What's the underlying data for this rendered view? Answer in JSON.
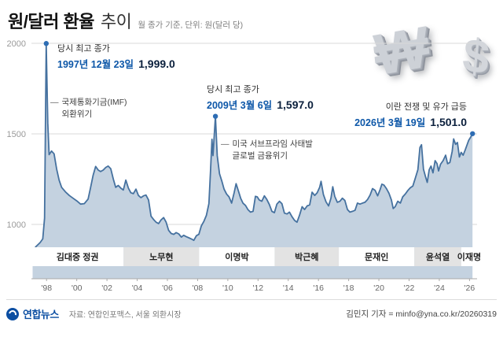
{
  "header": {
    "title_bold": "원/달러 환율",
    "title_light": "추이",
    "subtitle": "월 종가 기준, 단위: 원(달러 당)"
  },
  "decor": {
    "won_symbol": "₩",
    "dollar_symbol": "$"
  },
  "annotations": {
    "peak1997": {
      "label": "당시 최고 종가",
      "date": "1997년 12월 23일",
      "value": "1,999.0"
    },
    "imf": {
      "dash": "—",
      "line1": "국제통화기금(IMF)",
      "line2": "외환위기"
    },
    "peak2009": {
      "label": "당시 최고 종가",
      "date": "2009년 3월 6일",
      "value": "1,597.0"
    },
    "subprime": {
      "dash": "—",
      "line1": "미국 서브프라임 사태발",
      "line2": "글로벌 금융위기"
    },
    "peak2026": {
      "label": "이란 전쟁 및 유가 급등",
      "date": "2026년 3월 19일",
      "value": "1,501.0"
    }
  },
  "footer": {
    "logo_text": "연합뉴스",
    "source": "자료: 연합인포맥스, 서울 외환시장",
    "credit": "김민지 기자 = minfo@yna.co.kr/20260319"
  },
  "chart_data": {
    "type": "area",
    "title": "원/달러 환율 추이",
    "unit_note": "월 종가 기준, 단위: 원(달러 당)",
    "x_range": [
      1997.0,
      2026.5
    ],
    "y_axis": {
      "ticks": [
        2000,
        1500,
        1000
      ],
      "min": 700,
      "max": 2000
    },
    "x_ticks": [
      {
        "year": 1998,
        "label": "'98"
      },
      {
        "year": 2000,
        "label": "'00"
      },
      {
        "year": 2002,
        "label": "'02"
      },
      {
        "year": 2004,
        "label": "'04"
      },
      {
        "year": 2006,
        "label": "'06"
      },
      {
        "year": 2008,
        "label": "'08"
      },
      {
        "year": 2010,
        "label": "'10"
      },
      {
        "year": 2012,
        "label": "'12"
      },
      {
        "year": 2014,
        "label": "'14"
      },
      {
        "year": 2016,
        "label": "'16"
      },
      {
        "year": 2018,
        "label": "'18"
      },
      {
        "year": 2020,
        "label": "'20"
      },
      {
        "year": 2022,
        "label": "'22"
      },
      {
        "year": 2024,
        "label": "'24"
      },
      {
        "year": 2026,
        "label": "'26"
      }
    ],
    "admin_bands": [
      {
        "label": "김대중 정권",
        "start": 1997.0,
        "end": 2003.1,
        "shade": false
      },
      {
        "label": "노무현",
        "start": 2003.1,
        "end": 2008.1,
        "shade": true
      },
      {
        "label": "이명박",
        "start": 2008.1,
        "end": 2013.1,
        "shade": false
      },
      {
        "label": "박근혜",
        "start": 2013.1,
        "end": 2017.35,
        "shade": true
      },
      {
        "label": "문재인",
        "start": 2017.35,
        "end": 2022.35,
        "shade": false
      },
      {
        "label": "윤석열",
        "start": 2022.35,
        "end": 2025.45,
        "shade": true
      },
      {
        "label": "이재명",
        "start": 2025.45,
        "end": 2026.5,
        "shade": false
      }
    ],
    "markers": [
      {
        "year": 1997.98,
        "value": 1999.0
      },
      {
        "year": 2009.18,
        "value": 1597.0
      },
      {
        "year": 2026.2,
        "value": 1501.0
      }
    ],
    "points": [
      [
        1997.08,
        855
      ],
      [
        1997.33,
        880
      ],
      [
        1997.58,
        900
      ],
      [
        1997.75,
        920
      ],
      [
        1997.87,
        1035
      ],
      [
        1997.98,
        1999
      ],
      [
        1998.08,
        1560
      ],
      [
        1998.17,
        1385
      ],
      [
        1998.33,
        1405
      ],
      [
        1998.5,
        1390
      ],
      [
        1998.67,
        1305
      ],
      [
        1998.83,
        1245
      ],
      [
        1999.0,
        1205
      ],
      [
        1999.25,
        1180
      ],
      [
        1999.5,
        1160
      ],
      [
        1999.75,
        1145
      ],
      [
        2000.0,
        1130
      ],
      [
        2000.25,
        1112
      ],
      [
        2000.5,
        1115
      ],
      [
        2000.75,
        1140
      ],
      [
        2000.92,
        1205
      ],
      [
        2001.08,
        1270
      ],
      [
        2001.25,
        1320
      ],
      [
        2001.42,
        1300
      ],
      [
        2001.58,
        1292
      ],
      [
        2001.75,
        1300
      ],
      [
        2001.92,
        1315
      ],
      [
        2002.08,
        1322
      ],
      [
        2002.25,
        1308
      ],
      [
        2002.42,
        1250
      ],
      [
        2002.58,
        1205
      ],
      [
        2002.75,
        1215
      ],
      [
        2002.92,
        1200
      ],
      [
        2003.08,
        1190
      ],
      [
        2003.25,
        1245
      ],
      [
        2003.42,
        1200
      ],
      [
        2003.58,
        1175
      ],
      [
        2003.75,
        1170
      ],
      [
        2003.92,
        1195
      ],
      [
        2004.08,
        1160
      ],
      [
        2004.25,
        1148
      ],
      [
        2004.42,
        1158
      ],
      [
        2004.58,
        1162
      ],
      [
        2004.75,
        1135
      ],
      [
        2004.92,
        1045
      ],
      [
        2005.08,
        1028
      ],
      [
        2005.25,
        1012
      ],
      [
        2005.42,
        1005
      ],
      [
        2005.58,
        1025
      ],
      [
        2005.75,
        1038
      ],
      [
        2005.92,
        1012
      ],
      [
        2006.08,
        968
      ],
      [
        2006.25,
        950
      ],
      [
        2006.42,
        945
      ],
      [
        2006.58,
        955
      ],
      [
        2006.75,
        948
      ],
      [
        2006.92,
        930
      ],
      [
        2007.08,
        940
      ],
      [
        2007.25,
        932
      ],
      [
        2007.42,
        926
      ],
      [
        2007.58,
        920
      ],
      [
        2007.75,
        912
      ],
      [
        2007.92,
        938
      ],
      [
        2008.08,
        945
      ],
      [
        2008.25,
        992
      ],
      [
        2008.42,
        1018
      ],
      [
        2008.58,
        1050
      ],
      [
        2008.75,
        1115
      ],
      [
        2008.85,
        1290
      ],
      [
        2008.95,
        1470
      ],
      [
        2009.02,
        1380
      ],
      [
        2009.18,
        1597
      ],
      [
        2009.3,
        1380
      ],
      [
        2009.45,
        1280
      ],
      [
        2009.6,
        1240
      ],
      [
        2009.75,
        1195
      ],
      [
        2009.92,
        1168
      ],
      [
        2010.08,
        1152
      ],
      [
        2010.25,
        1118
      ],
      [
        2010.42,
        1175
      ],
      [
        2010.55,
        1225
      ],
      [
        2010.7,
        1185
      ],
      [
        2010.85,
        1145
      ],
      [
        2011.0,
        1118
      ],
      [
        2011.17,
        1105
      ],
      [
        2011.33,
        1082
      ],
      [
        2011.5,
        1068
      ],
      [
        2011.67,
        1072
      ],
      [
        2011.83,
        1155
      ],
      [
        2011.95,
        1152
      ],
      [
        2012.08,
        1135
      ],
      [
        2012.25,
        1128
      ],
      [
        2012.42,
        1158
      ],
      [
        2012.58,
        1138
      ],
      [
        2012.75,
        1110
      ],
      [
        2012.92,
        1072
      ],
      [
        2013.08,
        1065
      ],
      [
        2013.25,
        1112
      ],
      [
        2013.42,
        1128
      ],
      [
        2013.58,
        1115
      ],
      [
        2013.75,
        1062
      ],
      [
        2013.92,
        1058
      ],
      [
        2014.08,
        1068
      ],
      [
        2014.25,
        1042
      ],
      [
        2014.42,
        1022
      ],
      [
        2014.58,
        1012
      ],
      [
        2014.75,
        1052
      ],
      [
        2014.92,
        1098
      ],
      [
        2015.08,
        1082
      ],
      [
        2015.25,
        1102
      ],
      [
        2015.42,
        1108
      ],
      [
        2015.58,
        1178
      ],
      [
        2015.75,
        1160
      ],
      [
        2015.92,
        1175
      ],
      [
        2016.08,
        1205
      ],
      [
        2016.17,
        1238
      ],
      [
        2016.33,
        1165
      ],
      [
        2016.5,
        1125
      ],
      [
        2016.67,
        1102
      ],
      [
        2016.83,
        1145
      ],
      [
        2016.95,
        1208
      ],
      [
        2017.08,
        1155
      ],
      [
        2017.25,
        1122
      ],
      [
        2017.42,
        1128
      ],
      [
        2017.58,
        1145
      ],
      [
        2017.75,
        1132
      ],
      [
        2017.92,
        1082
      ],
      [
        2018.08,
        1068
      ],
      [
        2018.25,
        1072
      ],
      [
        2018.42,
        1078
      ],
      [
        2018.58,
        1118
      ],
      [
        2018.75,
        1112
      ],
      [
        2018.92,
        1118
      ],
      [
        2019.08,
        1122
      ],
      [
        2019.25,
        1138
      ],
      [
        2019.42,
        1162
      ],
      [
        2019.58,
        1198
      ],
      [
        2019.75,
        1188
      ],
      [
        2019.92,
        1158
      ],
      [
        2020.08,
        1192
      ],
      [
        2020.2,
        1222
      ],
      [
        2020.33,
        1218
      ],
      [
        2020.5,
        1198
      ],
      [
        2020.67,
        1172
      ],
      [
        2020.83,
        1135
      ],
      [
        2020.95,
        1088
      ],
      [
        2021.08,
        1098
      ],
      [
        2021.25,
        1128
      ],
      [
        2021.42,
        1118
      ],
      [
        2021.58,
        1152
      ],
      [
        2021.75,
        1168
      ],
      [
        2021.92,
        1188
      ],
      [
        2022.08,
        1202
      ],
      [
        2022.25,
        1212
      ],
      [
        2022.42,
        1258
      ],
      [
        2022.58,
        1302
      ],
      [
        2022.72,
        1425
      ],
      [
        2022.82,
        1440
      ],
      [
        2022.95,
        1305
      ],
      [
        2023.08,
        1265
      ],
      [
        2023.2,
        1232
      ],
      [
        2023.33,
        1302
      ],
      [
        2023.45,
        1322
      ],
      [
        2023.58,
        1285
      ],
      [
        2023.72,
        1352
      ],
      [
        2023.85,
        1335
      ],
      [
        2023.95,
        1295
      ],
      [
        2024.08,
        1332
      ],
      [
        2024.25,
        1352
      ],
      [
        2024.42,
        1382
      ],
      [
        2024.55,
        1335
      ],
      [
        2024.7,
        1342
      ],
      [
        2024.85,
        1402
      ],
      [
        2024.95,
        1472
      ],
      [
        2025.08,
        1442
      ],
      [
        2025.2,
        1452
      ],
      [
        2025.33,
        1372
      ],
      [
        2025.45,
        1398
      ],
      [
        2025.58,
        1382
      ],
      [
        2025.72,
        1412
      ],
      [
        2025.85,
        1442
      ],
      [
        2025.95,
        1465
      ],
      [
        2026.08,
        1482
      ],
      [
        2026.2,
        1501
      ]
    ],
    "colors": {
      "line": "#45719f",
      "fill": "#c4d2e0",
      "marker": "#2e6db4",
      "band": "#e3e3e3",
      "grid": "#d9d9d9",
      "axis": "#aaaaaa",
      "accent_blue": "#0d57a8",
      "logo_blue": "#0b4ea2"
    }
  }
}
